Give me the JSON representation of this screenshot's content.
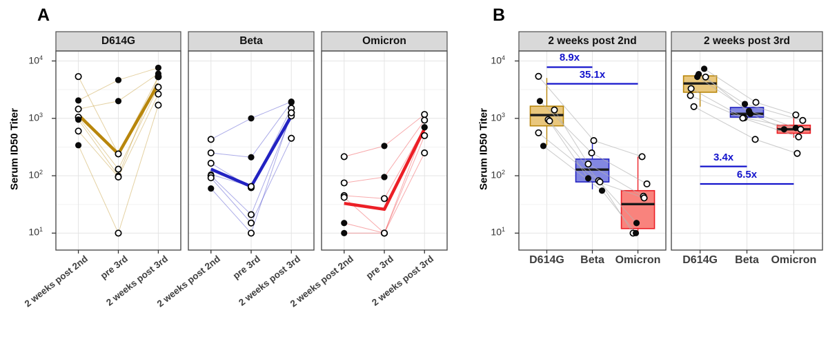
{
  "figure": {
    "panels": [
      {
        "label": "A"
      },
      {
        "label": "B"
      }
    ]
  },
  "colors": {
    "gold": "#B8860B",
    "gold_fill": "#E9C77D",
    "blue": "#2222C2",
    "blue_fill": "#8388E2",
    "red": "#EC1F26",
    "red_fill": "#F9837D",
    "annotation": "#1414CC",
    "strip_bg": "#D9D9D9",
    "panel_border": "#4D4D4D",
    "grid_major": "#E4E4E4",
    "grid_minor": "#F2F2F2",
    "subject_line_grey": "#B3B3B3",
    "axis_text": "#404040",
    "median": "#1A1A1A"
  },
  "chart_data": [
    {
      "type": "line",
      "panel_label": "A",
      "ylabel": "Serum ID50 Titer",
      "yscale": "log10",
      "ylim": [
        5,
        15000
      ],
      "yticks": [
        10000,
        1000,
        100,
        10
      ],
      "categories": [
        "2 weeks post 2nd",
        "pre 3rd",
        "2 weeks post 3rd"
      ],
      "grid": true,
      "legend": "none",
      "facets": [
        {
          "title": "D614G",
          "color_key": "gold",
          "mean_line": [
            1150,
            240,
            4000
          ],
          "subjects": [
            {
              "values": [
                5350,
                240,
                5300
              ],
              "fills": [
                "open",
                "open",
                "open"
              ]
            },
            {
              "values": [
                2050,
                4650,
                7600
              ],
              "fills": [
                "filled",
                "filled",
                "filled"
              ]
            },
            {
              "values": [
                1450,
                2000,
                6000
              ],
              "fills": [
                "open",
                "filled",
                "filled"
              ]
            },
            {
              "values": [
                1050,
                130,
                3500
              ],
              "fills": [
                "open",
                "open",
                "open"
              ]
            },
            {
              "values": [
                950,
                100,
                5400
              ],
              "fills": [
                "filled",
                "filled",
                "filled"
              ]
            },
            {
              "values": [
                600,
                95,
                2650
              ],
              "fills": [
                "open",
                "open",
                "open"
              ]
            },
            {
              "values": [
                340,
                10,
                1700
              ],
              "fills": [
                "filled",
                "open",
                "open"
              ]
            }
          ]
        },
        {
          "title": "Beta",
          "color_key": "blue",
          "mean_line": [
            130,
            65,
            1100
          ],
          "subjects": [
            {
              "values": [
                430,
                1000,
                1950
              ],
              "fills": [
                "open",
                "filled",
                "filled"
              ]
            },
            {
              "values": [
                250,
                210,
                1900
              ],
              "fills": [
                "open",
                "filled",
                "filled"
              ]
            },
            {
              "values": [
                165,
                62,
                1500
              ],
              "fills": [
                "open",
                "open",
                "open"
              ]
            },
            {
              "values": [
                105,
                65,
                1250
              ],
              "fills": [
                "filled",
                "open",
                "open"
              ]
            },
            {
              "values": [
                100,
                21,
                1100
              ],
              "fills": [
                "open",
                "open",
                "open"
              ]
            },
            {
              "values": [
                92,
                15,
                450
              ],
              "fills": [
                "open",
                "open",
                "open"
              ]
            },
            {
              "values": [
                60,
                10,
                1250
              ],
              "fills": [
                "filled",
                "open",
                "open"
              ]
            }
          ]
        },
        {
          "title": "Omicron",
          "color_key": "red",
          "mean_line": [
            33,
            26,
            660
          ],
          "subjects": [
            {
              "values": [
                215,
                330,
                1170
              ],
              "fills": [
                "open",
                "filled",
                "open"
              ]
            },
            {
              "values": [
                75,
                95,
                930
              ],
              "fills": [
                "open",
                "filled",
                "open"
              ]
            },
            {
              "values": [
                45,
                40,
                700
              ],
              "fills": [
                "open",
                "open",
                "filled"
              ]
            },
            {
              "values": [
                42,
                10,
                500
              ],
              "fills": [
                "open",
                "open",
                "open"
              ]
            },
            {
              "values": [
                15,
                10,
                700
              ],
              "fills": [
                "filled",
                "open",
                "filled"
              ]
            },
            {
              "values": [
                10,
                10,
                250
              ],
              "fills": [
                "filled",
                "open",
                "open"
              ]
            }
          ]
        }
      ]
    },
    {
      "type": "boxplot",
      "panel_label": "B",
      "ylabel": "Serum ID50 Titer",
      "yscale": "log10",
      "ylim": [
        5,
        15000
      ],
      "yticks": [
        10000,
        1000,
        100,
        10
      ],
      "categories": [
        "D614G",
        "Beta",
        "Omicron"
      ],
      "group_color_keys": [
        "gold",
        "blue",
        "red"
      ],
      "legend": "none",
      "facets": [
        {
          "title": "2 weeks post 2nd",
          "boxes": [
            {
              "group": "D614G",
              "whisker_low": 340,
              "q1": 740,
              "median": 1140,
              "q3": 1630,
              "whisker_high": 5050
            },
            {
              "group": "Beta",
              "whisker_low": 58,
              "q1": 78,
              "median": 128,
              "q3": 195,
              "whisker_high": 410
            },
            {
              "group": "Omicron",
              "whisker_low": 10,
              "q1": 12,
              "median": 32,
              "q3": 55,
              "whisker_high": 215
            }
          ],
          "annotations": [
            {
              "label": "8.9x",
              "y": 7800,
              "from": 0,
              "to": 1
            },
            {
              "label": "35.1x",
              "y": 4000,
              "from": 0,
              "to": 2
            }
          ],
          "subjects": [
            [
              [
                5400,
                "open",
                -12
              ],
              [
                410,
                "open",
                2
              ],
              [
                215,
                "open",
                6
              ]
            ],
            [
              [
                2000,
                "filled",
                -10
              ],
              [
                250,
                "open",
                -1
              ],
              [
                72,
                "open",
                13
              ]
            ],
            [
              [
                1400,
                "open",
                11
              ],
              [
                160,
                "open",
                -6
              ],
              [
                44,
                "open",
                8
              ]
            ],
            [
              [
                950,
                "open",
                2
              ],
              [
                90,
                "filled",
                -6
              ],
              [
                41,
                "open",
                9
              ]
            ],
            [
              [
                900,
                "open",
                4
              ],
              [
                82,
                "open",
                9
              ],
              [
                15,
                "filled",
                -2
              ]
            ],
            [
              [
                560,
                "open",
                -12
              ],
              [
                78,
                "open",
                11
              ],
              [
                10,
                "open",
                -7
              ]
            ],
            [
              [
                330,
                "filled",
                -5
              ],
              [
                55,
                "filled",
                14
              ],
              [
                10,
                "filled",
                -3
              ]
            ]
          ]
        },
        {
          "title": "2 weeks post 3rd",
          "boxes": [
            {
              "group": "D614G",
              "whisker_low": 1600,
              "q1": 2850,
              "median": 4050,
              "q3": 5500,
              "whisker_high": 5600
            },
            {
              "group": "Beta",
              "whisker_low": 1010,
              "q1": 1050,
              "median": 1200,
              "q3": 1550,
              "whisker_high": 1580
            },
            {
              "group": "Omicron",
              "whisker_low": 460,
              "q1": 550,
              "median": 645,
              "q3": 760,
              "whisker_high": 1100
            }
          ],
          "annotations": [
            {
              "label": "3.4x",
              "y": 145,
              "from": 0,
              "to": 1
            },
            {
              "label": "6.5x",
              "y": 72,
              "from": 0,
              "to": 2
            }
          ],
          "subjects": [
            [
              [
                7300,
                "filled",
                6
              ],
              [
                1900,
                "open",
                13
              ],
              [
                1150,
                "open",
                3
              ]
            ],
            [
              [
                5900,
                "filled",
                -2
              ],
              [
                1780,
                "filled",
                -3
              ],
              [
                920,
                "open",
                13
              ]
            ],
            [
              [
                5300,
                "filled",
                -4
              ],
              [
                1350,
                "filled",
                3
              ],
              [
                680,
                "filled",
                3
              ]
            ],
            [
              [
                5250,
                "open",
                8
              ],
              [
                1200,
                "filled",
                5
              ],
              [
                645,
                "filled",
                -14
              ]
            ],
            [
              [
                3300,
                "open",
                -13
              ],
              [
                1020,
                "open",
                -4
              ],
              [
                645,
                "open",
                10
              ]
            ],
            [
              [
                2500,
                "open",
                -14
              ],
              [
                1010,
                "open",
                -6
              ],
              [
                475,
                "open",
                7
              ]
            ],
            [
              [
                1600,
                "open",
                -9
              ],
              [
                430,
                "open",
                12
              ],
              [
                245,
                "open",
                5
              ]
            ]
          ]
        }
      ]
    }
  ]
}
